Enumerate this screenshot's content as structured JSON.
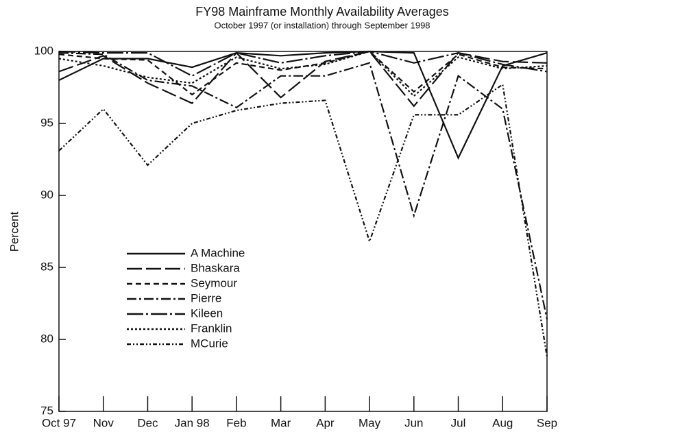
{
  "chart_data": {
    "type": "line",
    "title": "FY98 Mainframe Monthly Availability Averages",
    "subtitle": "October 1997 (or installation) through September 1998",
    "y_label": "Percent",
    "categories": [
      "Oct 97",
      "Nov",
      "Dec",
      "Jan 98",
      "Feb",
      "Mar",
      "Apr",
      "May",
      "Jun",
      "Jul",
      "Aug",
      "Sep"
    ],
    "ylim": [
      75,
      100
    ],
    "yticks": [
      75,
      80,
      85,
      90,
      95,
      100
    ],
    "series": [
      {
        "name": "A Machine",
        "color": "#111111",
        "dash": "none",
        "values": [
          98.0,
          99.5,
          99.5,
          98.9,
          99.9,
          99.7,
          99.9,
          100,
          99.9,
          92.6,
          99.0,
          99.9
        ]
      },
      {
        "name": "Bhaskara",
        "color": "#111111",
        "dash": "22 6",
        "values": [
          98.6,
          99.7,
          97.8,
          96.4,
          99.9,
          96.8,
          99.3,
          100,
          96.2,
          99.9,
          99.3,
          99.2
        ]
      },
      {
        "name": "Seymour",
        "color": "#111111",
        "dash": "8 5",
        "values": [
          99.8,
          99.5,
          99.4,
          97.0,
          99.2,
          98.7,
          99.2,
          100,
          97.2,
          99.8,
          98.9,
          98.8
        ]
      },
      {
        "name": "Pierre",
        "color": "#111111",
        "dash": "14 4 3 4",
        "values": [
          99.9,
          99.8,
          98.0,
          97.6,
          96.1,
          98.3,
          98.3,
          99.2,
          88.6,
          98.3,
          96.0,
          81.4
        ]
      },
      {
        "name": "Kileen",
        "color": "#111111",
        "dash": "24 4 3 4",
        "values": [
          100,
          99.9,
          99.9,
          98.3,
          99.9,
          99.2,
          99.7,
          100,
          99.2,
          99.9,
          99.1,
          98.6
        ]
      },
      {
        "name": "Franklin",
        "color": "#111111",
        "dash": "3 3",
        "values": [
          99.5,
          99.0,
          98.2,
          97.8,
          99.6,
          98.8,
          99.1,
          100,
          96.9,
          99.6,
          98.8,
          99.0
        ]
      },
      {
        "name": "MCurie",
        "color": "#111111",
        "dash": "6 3 2 3 2 3",
        "values": [
          93.1,
          96.0,
          92.1,
          95.0,
          95.9,
          96.4,
          96.6,
          86.8,
          95.6,
          95.6,
          97.7,
          78.8
        ]
      }
    ]
  }
}
